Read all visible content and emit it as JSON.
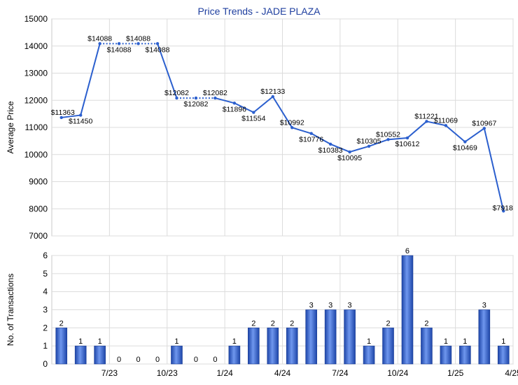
{
  "chart_data": [
    {
      "type": "line",
      "title": "Price Trends - JADE PLAZA",
      "ylabel": "Average Price",
      "ylim": [
        7000,
        15000
      ],
      "yticks": [
        7000,
        8000,
        9000,
        10000,
        11000,
        12000,
        13000,
        14000,
        15000
      ],
      "grid": true,
      "line_color": "#2b5fce",
      "points": [
        {
          "i": 0,
          "v": 11363,
          "label": "$11363",
          "seg": "solid"
        },
        {
          "i": 1,
          "v": 11450,
          "label": "$11450",
          "seg": "solid"
        },
        {
          "i": 2,
          "v": 14088,
          "label": "$14088",
          "seg": "solid"
        },
        {
          "i": 3,
          "v": 14088,
          "label": "$14088",
          "seg": "dotted"
        },
        {
          "i": 4,
          "v": 14088,
          "label": "$14088",
          "seg": "dotted"
        },
        {
          "i": 5,
          "v": 14088,
          "label": "$14088",
          "seg": "dotted"
        },
        {
          "i": 6,
          "v": 12082,
          "label": "$12082",
          "seg": "solid"
        },
        {
          "i": 7,
          "v": 12082,
          "label": "$12082",
          "seg": "dotted"
        },
        {
          "i": 8,
          "v": 12082,
          "label": "$12082",
          "seg": "dotted"
        },
        {
          "i": 9,
          "v": 11896,
          "label": "$11896",
          "seg": "solid"
        },
        {
          "i": 10,
          "v": 11554,
          "label": "$11554",
          "seg": "solid"
        },
        {
          "i": 11,
          "v": 12133,
          "label": "$12133",
          "seg": "solid"
        },
        {
          "i": 12,
          "v": 10992,
          "label": "$10992",
          "seg": "solid"
        },
        {
          "i": 13,
          "v": 10776,
          "label": "$10776",
          "seg": "solid"
        },
        {
          "i": 14,
          "v": 10383,
          "label": "$10383",
          "seg": "solid"
        },
        {
          "i": 15,
          "v": 10095,
          "label": "$10095",
          "seg": "solid"
        },
        {
          "i": 16,
          "v": 10305,
          "label": "$10305",
          "seg": "solid"
        },
        {
          "i": 17,
          "v": 10552,
          "label": "$10552",
          "seg": "solid"
        },
        {
          "i": 18,
          "v": 10612,
          "label": "$10612",
          "seg": "solid"
        },
        {
          "i": 19,
          "v": 11221,
          "label": "$11221",
          "seg": "solid"
        },
        {
          "i": 20,
          "v": 11069,
          "label": "$11069",
          "seg": "solid"
        },
        {
          "i": 21,
          "v": 10469,
          "label": "$10469",
          "seg": "solid"
        },
        {
          "i": 22,
          "v": 10967,
          "label": "$10967",
          "seg": "solid"
        },
        {
          "i": 23,
          "v": 7918,
          "label": "$7918",
          "seg": "solid"
        }
      ]
    },
    {
      "type": "bar",
      "ylabel": "No. of Transactions",
      "ylim": [
        0,
        6
      ],
      "yticks": [
        0,
        1,
        2,
        3,
        4,
        5,
        6
      ],
      "grid": true,
      "bar_color": "#2b5fce",
      "x_tick_labels": [
        {
          "between": [
            2,
            3
          ],
          "label": "7/23"
        },
        {
          "between": [
            5,
            6
          ],
          "label": "10/23"
        },
        {
          "between": [
            8,
            9
          ],
          "label": "1/24"
        },
        {
          "between": [
            11,
            12
          ],
          "label": "4/24"
        },
        {
          "between": [
            14,
            15
          ],
          "label": "7/24"
        },
        {
          "between": [
            17,
            18
          ],
          "label": "10/24"
        },
        {
          "between": [
            20,
            21
          ],
          "label": "1/25"
        },
        {
          "between": [
            23,
            24
          ],
          "label": "4/25"
        }
      ],
      "values": [
        2,
        1,
        1,
        0,
        0,
        0,
        1,
        0,
        0,
        1,
        2,
        2,
        2,
        3,
        3,
        3,
        1,
        2,
        6,
        2,
        1,
        1,
        3,
        1
      ]
    }
  ]
}
